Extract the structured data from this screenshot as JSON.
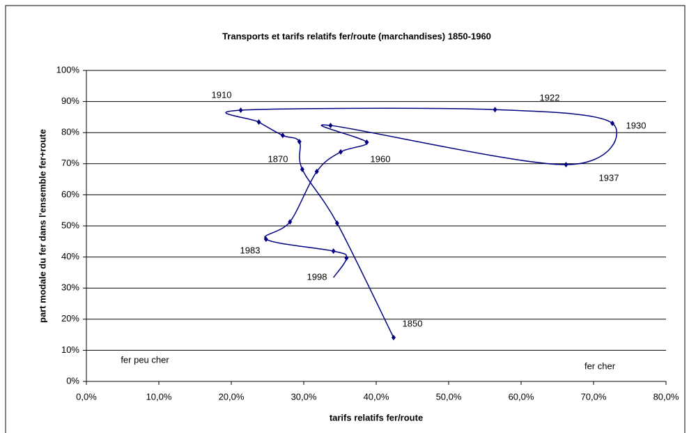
{
  "chart_data": {
    "type": "line",
    "title": "Transports et tarifs relatifs fer/route (marchandises) 1850-1960",
    "x_label": "tarifs relatifs fer/route",
    "y_label": "part modale du fer dans l'ensemble fer+route",
    "series": [
      {
        "color": "#000080",
        "x": [
          42.4,
          34.6,
          29.8,
          29.4,
          27.1,
          23.8,
          21.3,
          56.4,
          72.6,
          66.2,
          33.7,
          38.7,
          35.1,
          31.8,
          28.1,
          24.8,
          34.1,
          35.9,
          34.1
        ],
        "values": [
          14.1,
          50.9,
          68.2,
          77.1,
          79.1,
          83.4,
          87.2,
          87.4,
          83.0,
          69.7,
          82.3,
          76.9,
          73.8,
          67.5,
          51.3,
          45.7,
          41.9,
          39.7,
          33.4
        ]
      }
    ],
    "annotations": [
      "1850",
      "1870",
      "1910",
      "1922",
      "1930",
      "1937",
      "1960",
      "1983",
      "1998",
      "fer peu cher",
      "fer cher"
    ],
    "xlim": [
      0,
      80
    ],
    "xticks": [
      {
        "value": 0,
        "label": "0,0%"
      },
      {
        "value": 10,
        "label": "10,0%"
      },
      {
        "value": 20,
        "label": "20,0%"
      },
      {
        "value": 30,
        "label": "30,0%"
      },
      {
        "value": 40,
        "label": "40,0%"
      },
      {
        "value": 50,
        "label": "50,0%"
      },
      {
        "value": 60,
        "label": "60,0%"
      },
      {
        "value": 70,
        "label": "70,0%"
      },
      {
        "value": 80,
        "label": "80,0%"
      }
    ],
    "ylim": [
      0,
      100
    ],
    "yticks": [
      {
        "value": 0,
        "label": "0%"
      },
      {
        "value": 10,
        "label": "10%"
      },
      {
        "value": 20,
        "label": "20%"
      },
      {
        "value": 30,
        "label": "30%"
      },
      {
        "value": 40,
        "label": "40%"
      },
      {
        "value": 50,
        "label": "50%"
      },
      {
        "value": 60,
        "label": "60%"
      },
      {
        "value": 70,
        "label": "70%"
      },
      {
        "value": 80,
        "label": "80%"
      },
      {
        "value": 90,
        "label": "90%"
      },
      {
        "value": 100,
        "label": "100%"
      }
    ],
    "grid": true
  }
}
